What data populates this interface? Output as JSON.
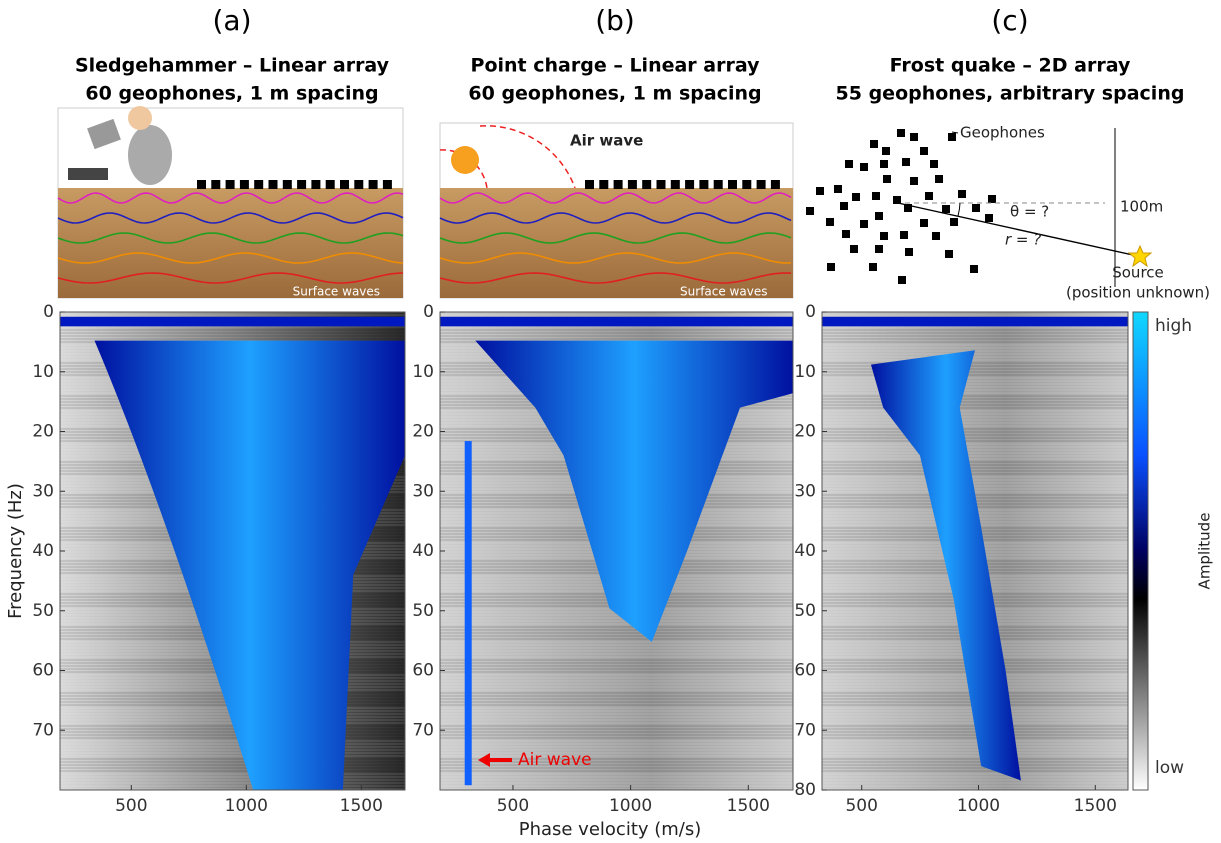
{
  "panels": [
    {
      "label": "(a)",
      "title": "Sledgehammer – Linear array",
      "subtitle": "60 geophones, 1 m spacing",
      "note": "Surface waves",
      "xlim": [
        190,
        1690
      ],
      "xticks": [
        500,
        1000,
        1500
      ],
      "ylim": [
        0,
        80
      ],
      "yticks": [
        0,
        10,
        20,
        30,
        40,
        50,
        60,
        70
      ]
    },
    {
      "label": "(b)",
      "title": "Point charge – Linear array",
      "subtitle": "60 geophones, 1 m spacing",
      "note": "Surface waves",
      "air_wave": "Air wave",
      "air_wave_arrow": "Air wave",
      "xlim": [
        190,
        1690
      ],
      "xticks": [
        500,
        1000,
        1500
      ],
      "ylim": [
        0,
        80
      ],
      "yticks": [
        0,
        10,
        20,
        30,
        40,
        50,
        60,
        70
      ]
    },
    {
      "label": "(c)",
      "title": "Frost quake – 2D array",
      "subtitle": "55 geophones, arbitrary spacing",
      "geophones": "Geophones",
      "angle": "θ = ?",
      "distance": "r = ?",
      "height": "100m",
      "source": "Source",
      "source_note": "(position unknown)",
      "xlim": [
        330,
        1640
      ],
      "xticks": [
        500,
        1000,
        1500
      ],
      "ylim": [
        0,
        80
      ],
      "yticks": [
        0,
        10,
        20,
        30,
        40,
        50,
        60,
        70,
        80
      ]
    }
  ],
  "axes": {
    "xlabel": "Phase velocity (m/s)",
    "ylabel": "Frequency (Hz)"
  },
  "colorbar": {
    "label": "Amplitude",
    "high": "high",
    "low": "low"
  }
}
